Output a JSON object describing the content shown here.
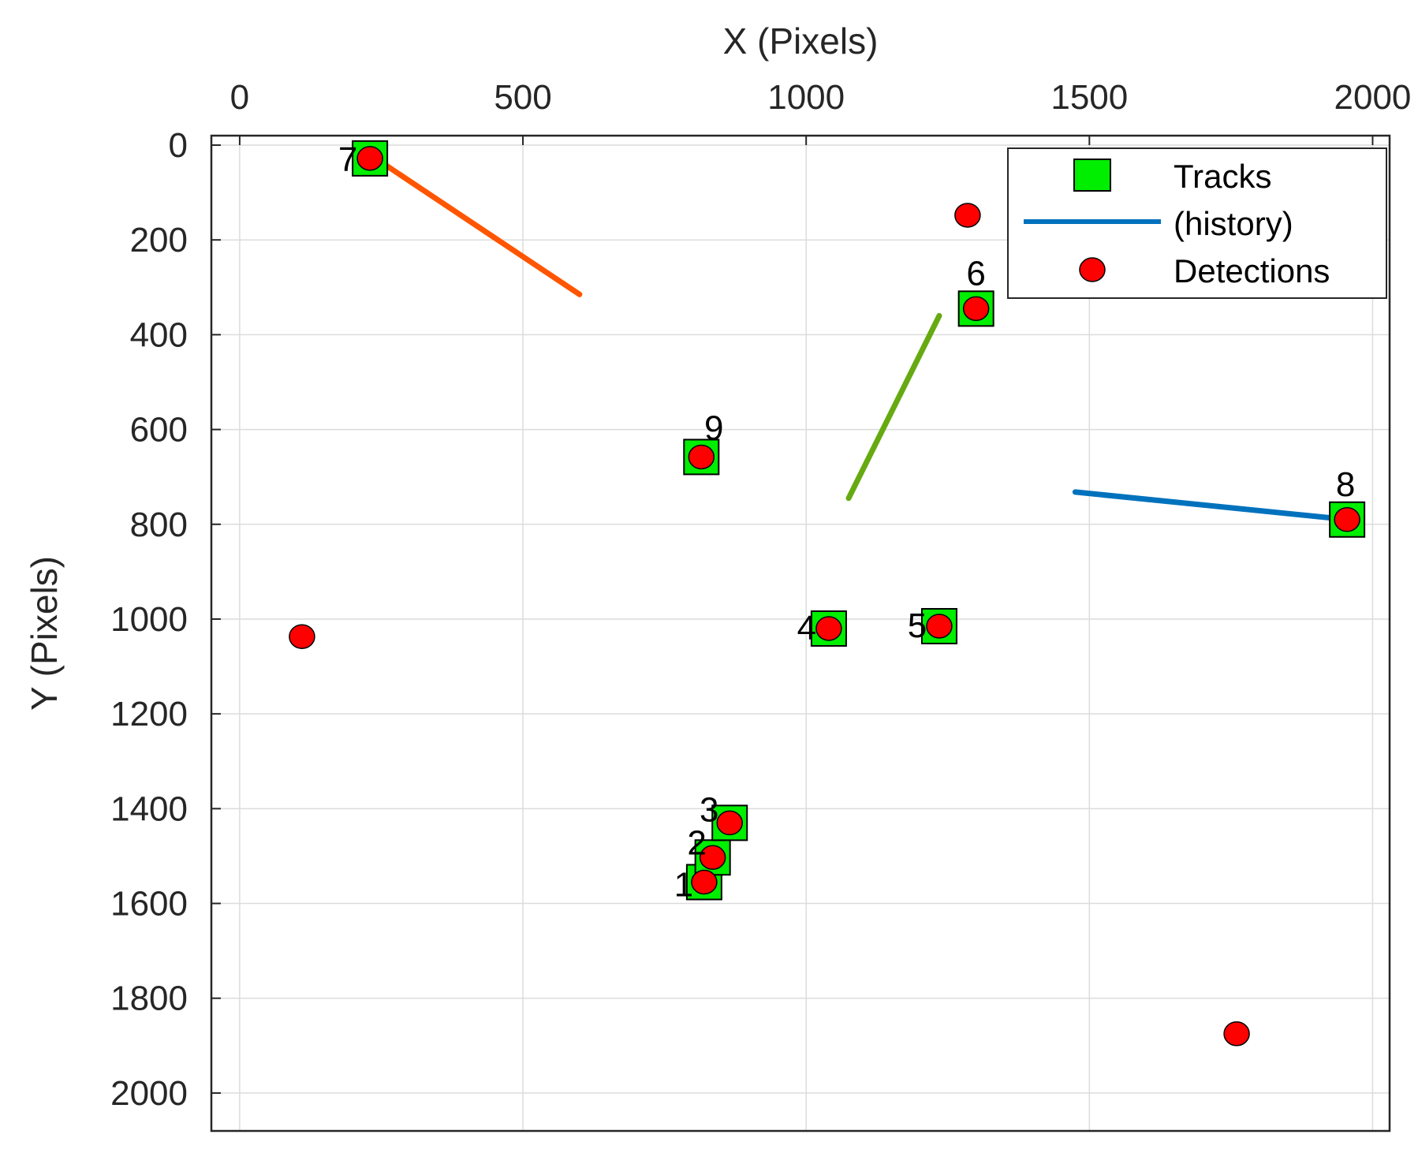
{
  "chart_data": {
    "type": "scatter",
    "xlabel": "X (Pixels)",
    "ylabel": "Y (Pixels)",
    "x_axis_location": "top",
    "y_axis_direction": "reversed",
    "xlim": [
      -50,
      2030
    ],
    "ylim": [
      -20,
      2080
    ],
    "xticks": [
      0,
      500,
      1000,
      1500,
      2000
    ],
    "yticks": [
      0,
      200,
      400,
      600,
      800,
      1000,
      1200,
      1400,
      1600,
      1800,
      2000
    ],
    "grid": true,
    "legend": {
      "position": "top-right",
      "entries": [
        {
          "label": "Tracks",
          "marker": "square",
          "color": "#00ee00"
        },
        {
          "label": "(history)",
          "marker": "line",
          "color": "#0072bd"
        },
        {
          "label": "Detections",
          "marker": "circle",
          "color": "#ff0000"
        }
      ]
    },
    "tracks": [
      {
        "id": "1",
        "x": 820,
        "y": 1555
      },
      {
        "id": "2",
        "x": 835,
        "y": 1503
      },
      {
        "id": "3",
        "x": 865,
        "y": 1430
      },
      {
        "id": "4",
        "x": 1040,
        "y": 1020
      },
      {
        "id": "5",
        "x": 1235,
        "y": 1015
      },
      {
        "id": "6",
        "x": 1300,
        "y": 345
      },
      {
        "id": "7",
        "x": 230,
        "y": 28
      },
      {
        "id": "8",
        "x": 1955,
        "y": 790
      },
      {
        "id": "9",
        "x": 815,
        "y": 658
      }
    ],
    "detections": [
      {
        "x": 820,
        "y": 1555
      },
      {
        "x": 835,
        "y": 1503
      },
      {
        "x": 865,
        "y": 1430
      },
      {
        "x": 1040,
        "y": 1020
      },
      {
        "x": 1235,
        "y": 1015
      },
      {
        "x": 1300,
        "y": 345
      },
      {
        "x": 230,
        "y": 28
      },
      {
        "x": 1955,
        "y": 790
      },
      {
        "x": 815,
        "y": 658
      },
      {
        "x": 1285,
        "y": 148
      },
      {
        "x": 110,
        "y": 1037
      },
      {
        "x": 1760,
        "y": 1875
      }
    ],
    "histories": [
      {
        "track": "7",
        "color": "#ff5500",
        "points": [
          [
            240,
            28
          ],
          [
            600,
            315
          ]
        ]
      },
      {
        "track": "5",
        "color": "#66aa11",
        "points": [
          [
            1235,
            360
          ],
          [
            1075,
            745
          ]
        ]
      },
      {
        "track": "8",
        "color": "#0072bd",
        "points": [
          [
            1475,
            732
          ],
          [
            1955,
            790
          ]
        ]
      }
    ]
  }
}
